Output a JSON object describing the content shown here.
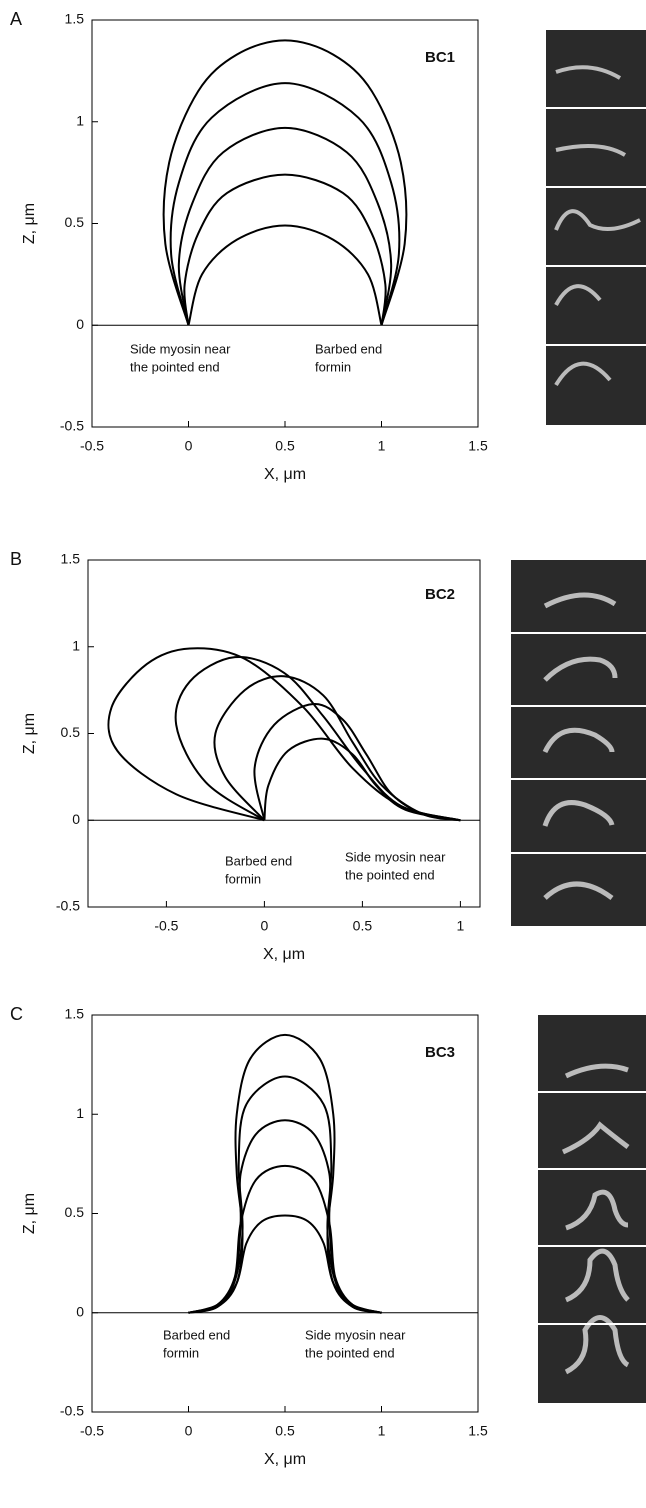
{
  "chart_data": [
    {
      "type": "line",
      "panel": "A",
      "label": "BC1",
      "xlabel": "X, μm",
      "ylabel": "Z, μm",
      "xlim": [
        -0.5,
        1.5
      ],
      "ylim": [
        -0.5,
        1.5
      ],
      "xticks": [
        -0.5,
        0,
        0.5,
        1,
        1.5
      ],
      "yticks": [
        -0.5,
        0,
        0.5,
        1,
        1.5
      ],
      "annotations": [
        [
          "Side myosin near",
          "the pointed end"
        ],
        [
          "Barbed end",
          "formin"
        ]
      ],
      "series": [
        {
          "color": "#000000",
          "x": [
            0,
            0.07,
            0.25,
            0.5,
            0.75,
            0.93,
            1
          ],
          "values": [
            0,
            0.25,
            0.42,
            0.49,
            0.42,
            0.25,
            0
          ]
        },
        {
          "color": "#000000",
          "x": [
            0,
            -0.02,
            0.05,
            0.2,
            0.5,
            0.8,
            0.95,
            1.02,
            1
          ],
          "values": [
            0,
            0.2,
            0.45,
            0.65,
            0.74,
            0.65,
            0.45,
            0.2,
            0
          ]
        },
        {
          "color": "#000000",
          "x": [
            0,
            -0.05,
            0.02,
            0.18,
            0.5,
            0.82,
            0.98,
            1.05,
            1
          ],
          "values": [
            0,
            0.3,
            0.6,
            0.85,
            0.97,
            0.85,
            0.6,
            0.3,
            0
          ]
        },
        {
          "color": "#000000",
          "x": [
            0,
            -0.09,
            -0.05,
            0.12,
            0.5,
            0.88,
            1.05,
            1.09,
            1
          ],
          "values": [
            0,
            0.35,
            0.7,
            1.02,
            1.19,
            1.02,
            0.7,
            0.35,
            0
          ]
        },
        {
          "color": "#000000",
          "x": [
            0,
            -0.12,
            -0.1,
            0.05,
            0.25,
            0.5,
            0.75,
            0.95,
            1.1,
            1.12,
            1
          ],
          "values": [
            0,
            0.4,
            0.8,
            1.15,
            1.33,
            1.4,
            1.33,
            1.15,
            0.8,
            0.4,
            0
          ]
        }
      ]
    },
    {
      "type": "line",
      "panel": "B",
      "label": "BC2",
      "xlabel": "X, μm",
      "ylabel": "Z, μm",
      "xlim": [
        -0.9,
        1.1
      ],
      "ylim": [
        -0.5,
        1.5
      ],
      "xticks": [
        -0.5,
        0,
        0.5,
        1
      ],
      "yticks": [
        -0.5,
        0,
        0.5,
        1,
        1.5
      ],
      "annotations": [
        [
          "Barbed end",
          "formin"
        ],
        [
          "Side myosin near",
          "the pointed end"
        ]
      ],
      "series": [
        {
          "color": "#000000",
          "x": [
            0,
            -0.45,
            -0.75,
            -0.78,
            -0.6,
            -0.38,
            -0.1,
            0.2,
            0.45,
            0.7,
            1
          ],
          "values": [
            0,
            0.15,
            0.4,
            0.65,
            0.9,
            0.99,
            0.93,
            0.65,
            0.3,
            0.08,
            0
          ]
        },
        {
          "color": "#000000",
          "x": [
            0,
            -0.3,
            -0.45,
            -0.38,
            -0.15,
            0.1,
            0.3,
            0.5,
            0.7,
            1
          ],
          "values": [
            0,
            0.22,
            0.55,
            0.8,
            0.94,
            0.85,
            0.6,
            0.3,
            0.08,
            0
          ]
        },
        {
          "color": "#000000",
          "x": [
            0,
            -0.2,
            -0.25,
            -0.1,
            0.1,
            0.3,
            0.45,
            0.6,
            0.8,
            1
          ],
          "values": [
            0,
            0.25,
            0.5,
            0.75,
            0.83,
            0.72,
            0.45,
            0.2,
            0.04,
            0
          ]
        },
        {
          "color": "#000000",
          "x": [
            0,
            -0.05,
            0.05,
            0.25,
            0.4,
            0.52,
            0.65,
            0.82,
            1
          ],
          "values": [
            0,
            0.3,
            0.55,
            0.67,
            0.58,
            0.38,
            0.15,
            0.03,
            0
          ]
        },
        {
          "color": "#000000",
          "x": [
            0,
            0.02,
            0.12,
            0.3,
            0.45,
            0.57,
            0.72,
            1
          ],
          "values": [
            0,
            0.2,
            0.4,
            0.47,
            0.38,
            0.2,
            0.06,
            0
          ]
        }
      ]
    },
    {
      "type": "line",
      "panel": "C",
      "label": "BC3",
      "xlabel": "X, μm",
      "ylabel": "Z, μm",
      "xlim": [
        -0.5,
        1.5
      ],
      "ylim": [
        -0.5,
        1.5
      ],
      "xticks": [
        -0.5,
        0,
        0.5,
        1,
        1.5
      ],
      "yticks": [
        -0.5,
        0,
        0.5,
        1,
        1.5
      ],
      "annotations": [
        [
          "Barbed end",
          "formin"
        ],
        [
          "Side myosin near",
          "the pointed end"
        ]
      ],
      "series": [
        {
          "color": "#000000",
          "x": [
            0,
            0.15,
            0.25,
            0.3,
            0.38,
            0.5,
            0.62,
            0.7,
            0.75,
            0.85,
            1
          ],
          "values": [
            0,
            0.04,
            0.15,
            0.35,
            0.46,
            0.49,
            0.46,
            0.35,
            0.15,
            0.04,
            0
          ]
        },
        {
          "color": "#000000",
          "x": [
            0,
            0.15,
            0.24,
            0.27,
            0.35,
            0.5,
            0.65,
            0.73,
            0.76,
            0.85,
            1
          ],
          "values": [
            0,
            0.04,
            0.18,
            0.45,
            0.67,
            0.74,
            0.67,
            0.45,
            0.18,
            0.04,
            0
          ]
        },
        {
          "color": "#000000",
          "x": [
            0,
            0.15,
            0.24,
            0.27,
            0.27,
            0.35,
            0.5,
            0.65,
            0.73,
            0.73,
            0.76,
            0.85,
            1
          ],
          "values": [
            0,
            0.04,
            0.17,
            0.45,
            0.7,
            0.9,
            0.97,
            0.9,
            0.7,
            0.45,
            0.17,
            0.04,
            0
          ]
        },
        {
          "color": "#000000",
          "x": [
            0,
            0.15,
            0.24,
            0.28,
            0.26,
            0.3,
            0.5,
            0.7,
            0.74,
            0.72,
            0.76,
            0.85,
            1
          ],
          "values": [
            0,
            0.03,
            0.16,
            0.42,
            0.75,
            1.05,
            1.19,
            1.05,
            0.75,
            0.42,
            0.16,
            0.03,
            0
          ]
        },
        {
          "color": "#000000",
          "x": [
            0,
            0.15,
            0.25,
            0.28,
            0.25,
            0.25,
            0.32,
            0.5,
            0.68,
            0.75,
            0.75,
            0.72,
            0.75,
            0.85,
            1
          ],
          "values": [
            0,
            0.03,
            0.15,
            0.4,
            0.7,
            1.0,
            1.28,
            1.4,
            1.28,
            1.0,
            0.7,
            0.4,
            0.15,
            0.03,
            0
          ]
        }
      ]
    }
  ]
}
